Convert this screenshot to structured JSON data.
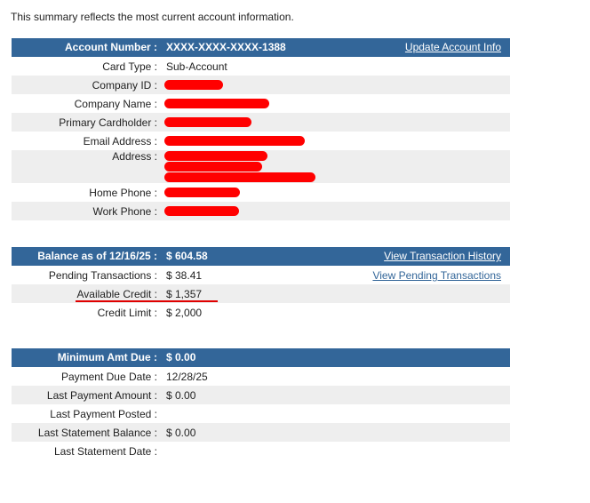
{
  "intro": "This summary reflects the most current account information.",
  "account": {
    "header_label": "Account Number :",
    "header_value": "XXXX-XXXX-XXXX-1388",
    "update_link": "Update Account Info",
    "rows": [
      {
        "label": "Card Type :",
        "value": "Sub-Account"
      },
      {
        "label": "Company ID :",
        "value": ""
      },
      {
        "label": "Company Name :",
        "value": ""
      },
      {
        "label": "Primary Cardholder :",
        "value": ""
      },
      {
        "label": "Email Address :",
        "value": ""
      },
      {
        "label": "Address :",
        "value": ""
      },
      {
        "label": "Home Phone :",
        "value": ""
      },
      {
        "label": "Work Phone :",
        "value": ""
      }
    ]
  },
  "balance": {
    "header_label": "Balance as of 12/16/25 :",
    "header_value": "$ 604.58",
    "history_link": "View Transaction History",
    "pending_link": "View Pending Transactions",
    "rows": [
      {
        "label": "Pending Transactions :",
        "value": "$ 38.41"
      },
      {
        "label": "Available Credit :",
        "value": "$ 1,357"
      },
      {
        "label": "Credit Limit :",
        "value": "$ 2,000"
      }
    ]
  },
  "payment": {
    "header_label": "Minimum Amt Due :",
    "header_value": "$ 0.00",
    "rows": [
      {
        "label": "Payment Due Date :",
        "value": "12/28/25"
      },
      {
        "label": "Last Payment Amount :",
        "value": "$ 0.00"
      },
      {
        "label": "Last Payment Posted :",
        "value": ""
      },
      {
        "label": "Last Statement Balance :",
        "value": "$ 0.00"
      },
      {
        "label": "Last Statement Date :",
        "value": ""
      }
    ]
  },
  "colors": {
    "header_bg": "#336699",
    "row_alt": "#eeeeee",
    "redaction": "#ff0000"
  }
}
